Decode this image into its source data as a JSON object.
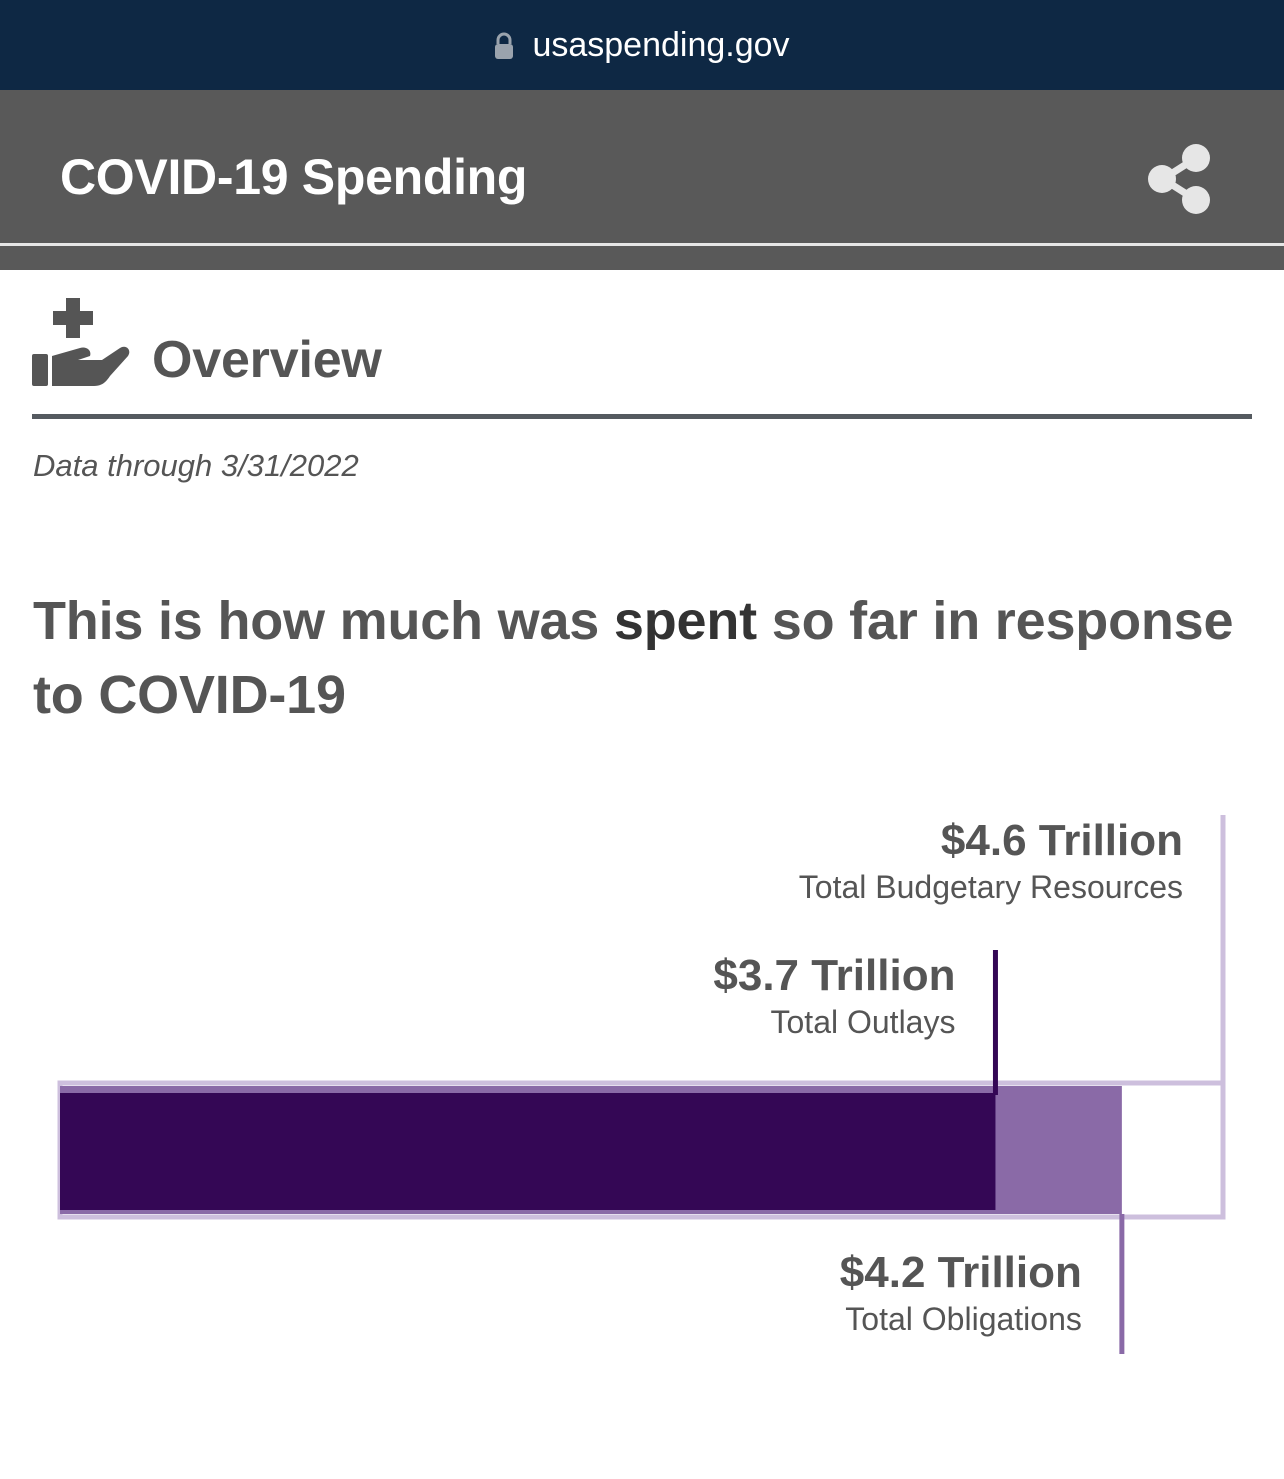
{
  "browser": {
    "url": "usaspending.gov"
  },
  "header": {
    "title": "COVID-19 Spending"
  },
  "section": {
    "title": "Overview",
    "date_note": "Data through 3/31/2022"
  },
  "headline": {
    "before": "This is how much was ",
    "emphasis": "spent",
    "after": " so far in response to COVID-19"
  },
  "colors": {
    "url_bar": "#0e2844",
    "header_bar": "#595959",
    "outlays": "#340755",
    "obligations": "#8a6aa7",
    "budgetary_resources": "#cdbfdd"
  },
  "icons": {
    "lock": "lock-icon",
    "share": "share-icon",
    "overview": "hand-holding-medical-icon"
  },
  "chart_data": {
    "type": "bar",
    "orientation": "horizontal",
    "unit": "Trillion USD",
    "series": [
      {
        "name": "Total Budgetary Resources",
        "value": 4.6,
        "label": "$4.6 Trillion"
      },
      {
        "name": "Total Obligations",
        "value": 4.2,
        "label": "$4.2 Trillion"
      },
      {
        "name": "Total Outlays",
        "value": 3.7,
        "label": "$3.7 Trillion"
      }
    ]
  }
}
